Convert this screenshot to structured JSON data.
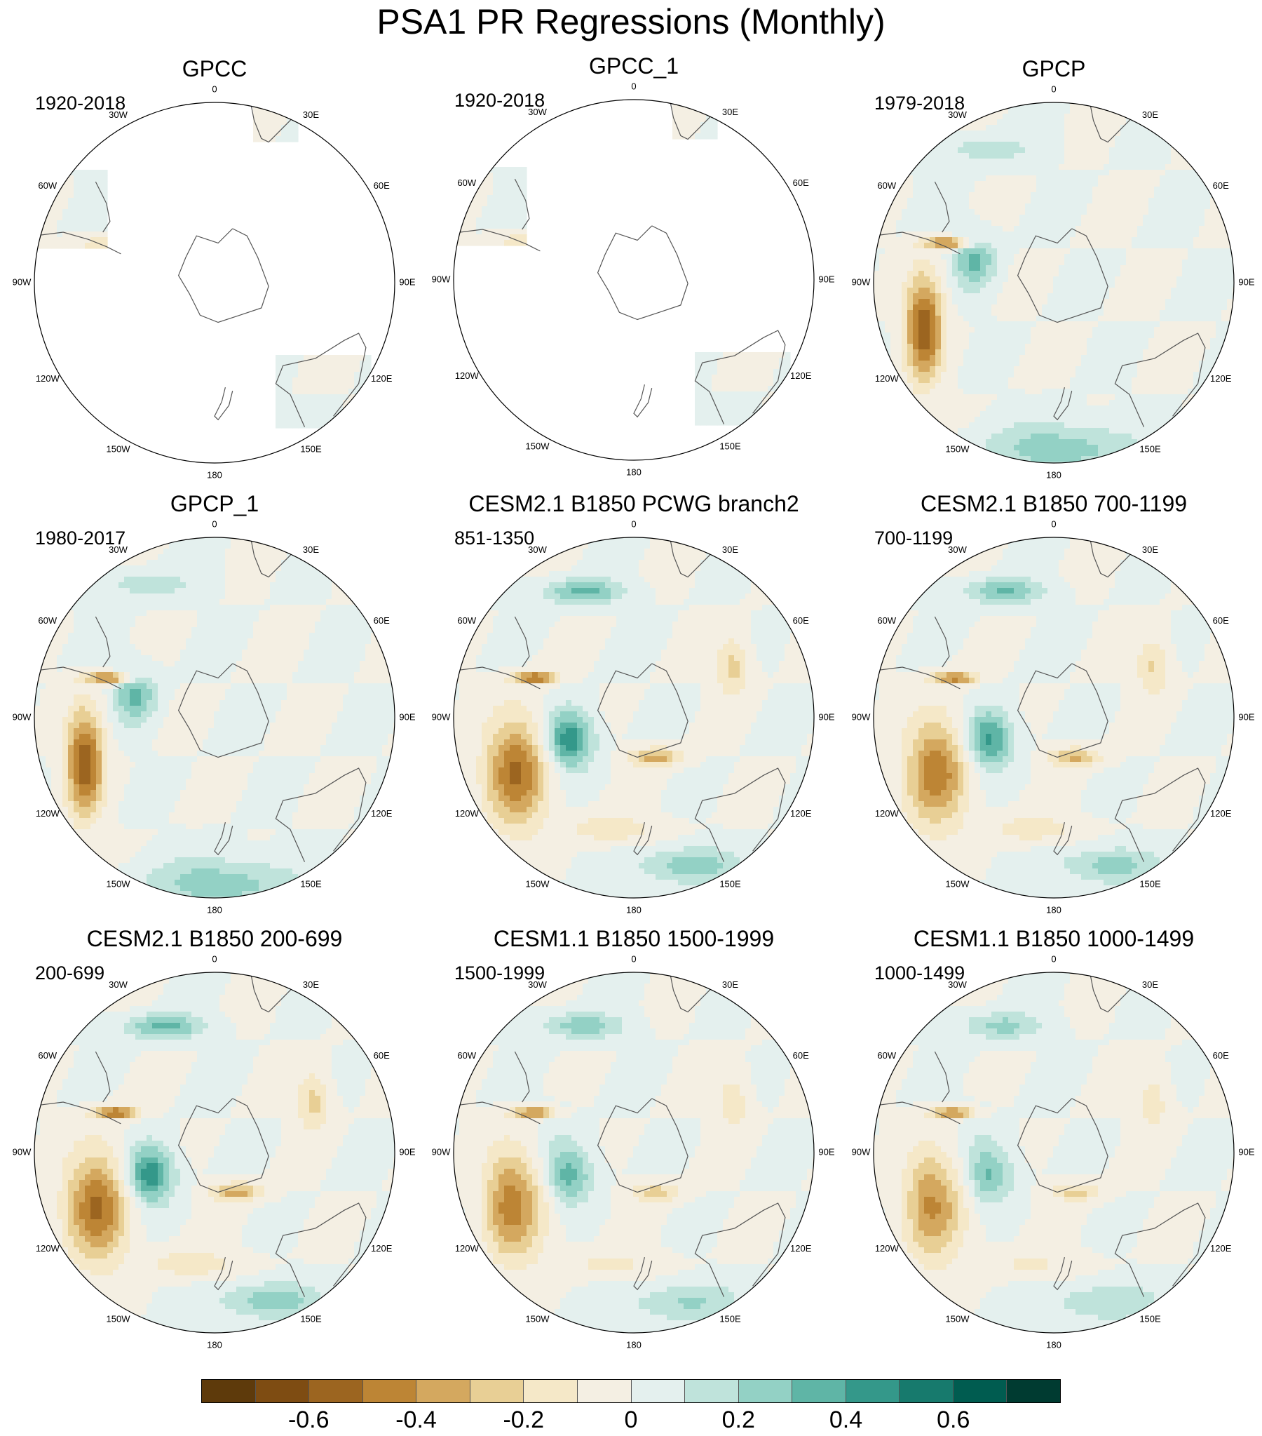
{
  "title": "PSA1 PR Regressions (Monthly)",
  "longitude_labels": [
    "0",
    "30E",
    "60E",
    "90E",
    "120E",
    "150E",
    "180",
    "150W",
    "120W",
    "90W",
    "60W",
    "30W"
  ],
  "panels": [
    {
      "title": "GPCC",
      "period": "1920-2018",
      "coverage": "land",
      "strength": 0.3,
      "ocean_blob_mix": 0
    },
    {
      "title": "GPCC_1",
      "period": "1920-2018",
      "coverage": "land",
      "strength": 0.3,
      "ocean_blob_mix": 0
    },
    {
      "title": "GPCP",
      "period": "1979-2018",
      "coverage": "global",
      "strength": 0.6,
      "ocean_blob_mix": 0
    },
    {
      "title": "GPCP_1",
      "period": "1980-2017",
      "coverage": "global",
      "strength": 0.6,
      "ocean_blob_mix": 0
    },
    {
      "title": "CESM2.1 B1850 PCWG branch2",
      "period": "851-1350",
      "coverage": "global",
      "strength": 0.6,
      "ocean_blob_mix": 1
    },
    {
      "title": "CESM2.1 B1850 700-1199",
      "period": "700-1199",
      "coverage": "global",
      "strength": 0.55,
      "ocean_blob_mix": 1
    },
    {
      "title": "CESM2.1 B1850 200-699",
      "period": "200-699",
      "coverage": "global",
      "strength": 0.6,
      "ocean_blob_mix": 1
    },
    {
      "title": "CESM1.1 B1850 1500-1999",
      "period": "1500-1999",
      "coverage": "global",
      "strength": 0.55,
      "ocean_blob_mix": 0.8
    },
    {
      "title": "CESM1.1 B1850 1000-1499",
      "period": "1000-1499",
      "coverage": "global",
      "strength": 0.5,
      "ocean_blob_mix": 0.8
    }
  ],
  "colorbar": {
    "colors": [
      "#5e3a0b",
      "#7e4c12",
      "#9c6520",
      "#bd8535",
      "#d4a85f",
      "#e8cf95",
      "#f5e8c8",
      "#f4efe3",
      "#e4f0ee",
      "#bfe3db",
      "#93d1c5",
      "#5fb5a6",
      "#34988a",
      "#177a6d",
      "#005c50",
      "#003b31"
    ],
    "levels": [
      -0.7,
      -0.6,
      -0.5,
      -0.4,
      -0.3,
      -0.2,
      -0.1,
      0,
      0.1,
      0.2,
      0.3,
      0.4,
      0.5,
      0.6,
      0.7
    ],
    "tick_labels": [
      "-0.6",
      "-0.4",
      "-0.2",
      "0",
      "0.2",
      "0.4",
      "0.6"
    ],
    "tick_values": [
      -0.6,
      -0.4,
      -0.2,
      0,
      0.2,
      0.4,
      0.6
    ]
  }
}
